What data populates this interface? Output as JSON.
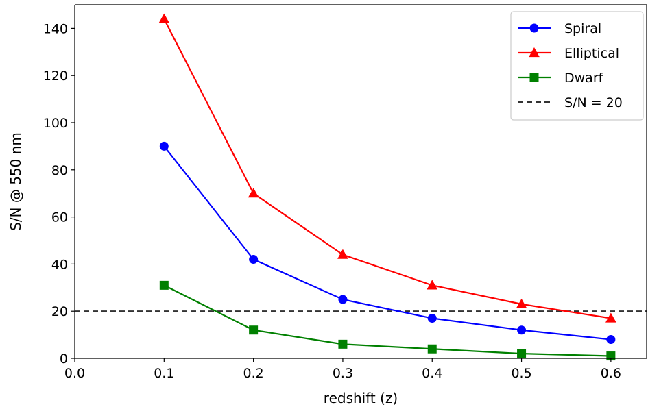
{
  "chart_data": {
    "type": "line",
    "title": "",
    "xlabel": "redshift (z)",
    "ylabel": "S/N @ 550 nm",
    "xlim": [
      0.0,
      0.64
    ],
    "ylim": [
      0,
      150
    ],
    "xticks": [
      "0.0",
      "0.1",
      "0.2",
      "0.3",
      "0.4",
      "0.5",
      "0.6"
    ],
    "yticks": [
      "0",
      "20",
      "40",
      "60",
      "80",
      "100",
      "120",
      "140"
    ],
    "x": [
      0.1,
      0.2,
      0.3,
      0.4,
      0.5,
      0.6
    ],
    "series": [
      {
        "name": "Spiral",
        "color": "#0000ff",
        "marker": "circle",
        "values": [
          90,
          42,
          25,
          17,
          12,
          8
        ]
      },
      {
        "name": "Elliptical",
        "color": "#ff0000",
        "marker": "triangle",
        "values": [
          144,
          70,
          44,
          31,
          23,
          17
        ]
      },
      {
        "name": "Dwarf",
        "color": "#008000",
        "marker": "square",
        "values": [
          31,
          12,
          6,
          4,
          2,
          1
        ]
      }
    ],
    "reference_line": {
      "name": "S/N = 20",
      "y": 20,
      "color": "#333333",
      "style": "dashed"
    },
    "legend": "top-right",
    "grid": false
  }
}
